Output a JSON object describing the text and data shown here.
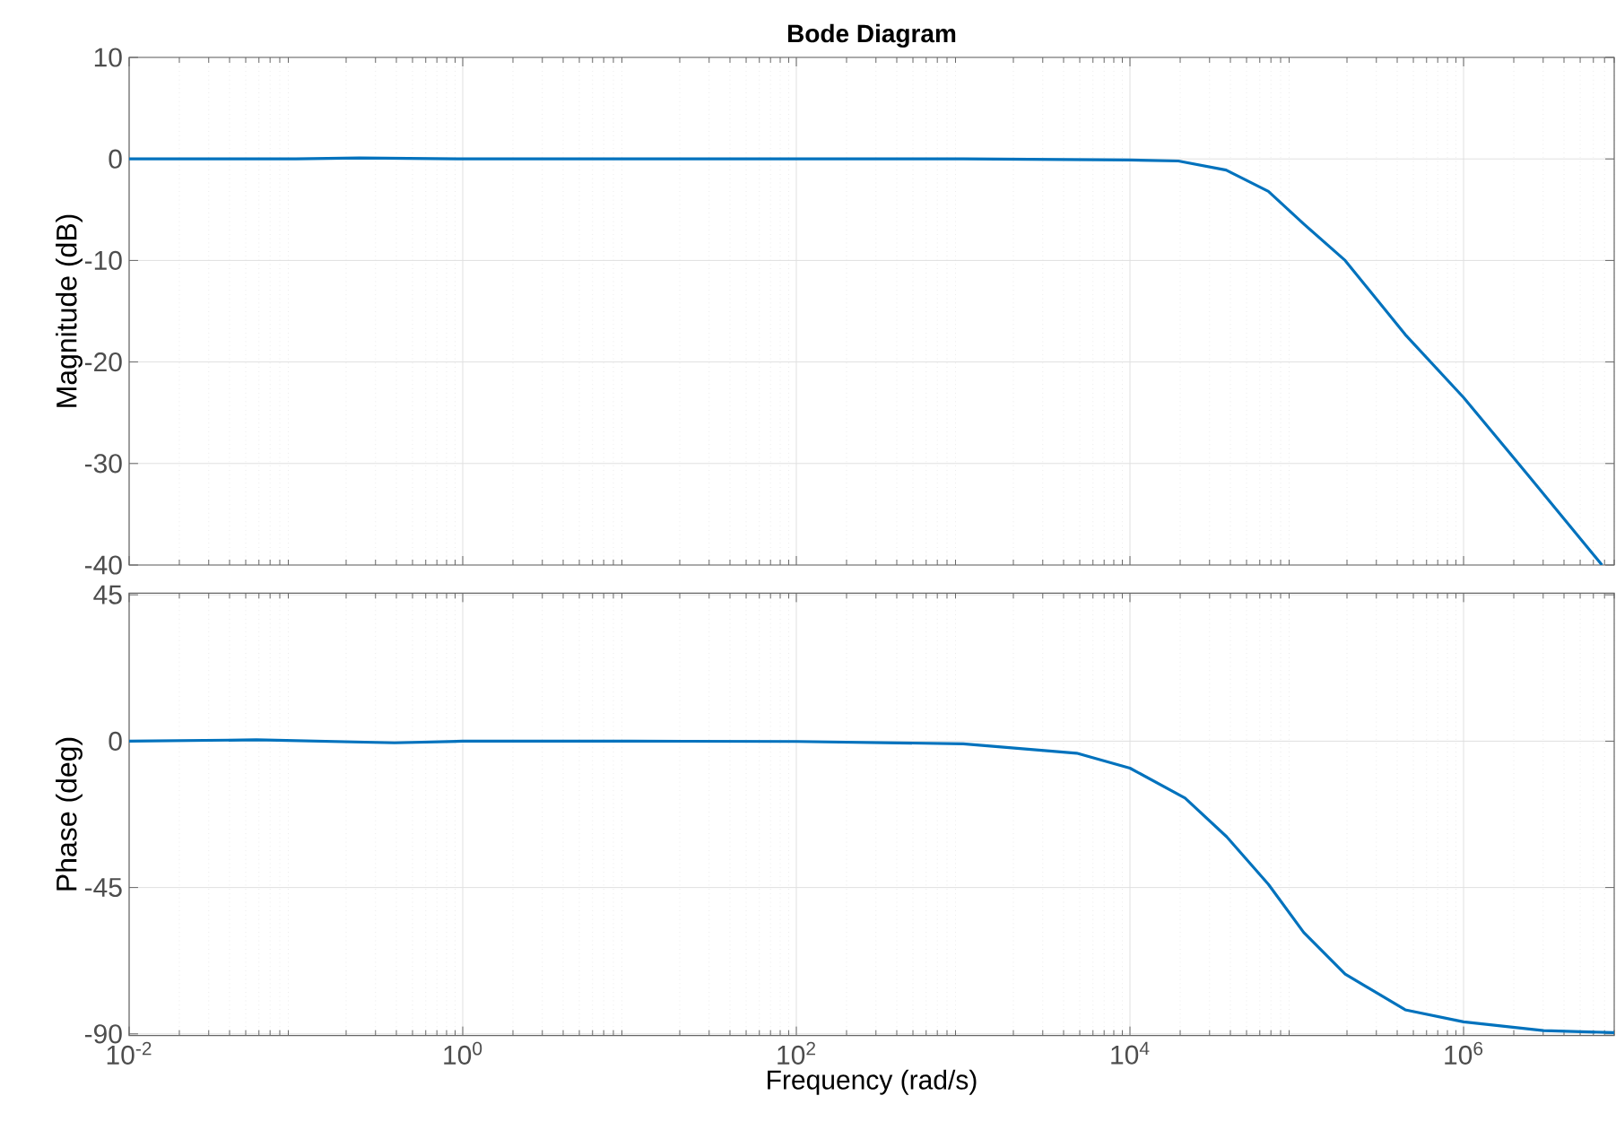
{
  "chart_data": [
    {
      "type": "line",
      "title": "Bode Diagram",
      "ylabel": "Magnitude (dB)",
      "log": "x",
      "grid": true,
      "tick_labels": "y",
      "xlim": [
        0.01,
        8000000
      ],
      "ylim": [
        -40,
        10
      ],
      "xticks": [
        {
          "value": 0.01,
          "label": null
        },
        {
          "value": 1,
          "label": null
        },
        {
          "value": 100,
          "label": null
        },
        {
          "value": 10000,
          "label": null
        },
        {
          "value": 1000000,
          "label": null
        }
      ],
      "yticks": [
        10,
        0,
        -10,
        -20,
        -30,
        -40
      ],
      "series": [
        {
          "color": "#0072bd",
          "x": [
            0.01,
            0.1,
            0.24,
            1,
            10,
            100,
            1000,
            10000,
            19500,
            37700,
            67600,
            110000,
            195000,
            447000,
            1000000,
            2510000,
            6760000
          ],
          "values": [
            0,
            0,
            0.1,
            0,
            0,
            0,
            0,
            -0.1,
            -0.2,
            -1.1,
            -3.2,
            -6.4,
            -10,
            -17.3,
            -23.5,
            -31.4,
            -40
          ]
        }
      ]
    },
    {
      "type": "line",
      "xlabel": "Frequency  (rad/s)",
      "ylabel": "Phase (deg)",
      "log": "x",
      "grid": true,
      "xlim": [
        0.01,
        8000000
      ],
      "ylim": [
        -90.5,
        45.5
      ],
      "xticks": [
        {
          "value": 0.01,
          "label": "10$^{-2}$"
        },
        {
          "value": 1,
          "label": "10$^{0}$"
        },
        {
          "value": 100,
          "label": "10$^{2}$"
        },
        {
          "value": 10000,
          "label": "10$^{4}$"
        },
        {
          "value": 1000000,
          "label": "10$^{6}$"
        }
      ],
      "yticks": [
        45,
        0,
        -45,
        -90
      ],
      "series": [
        {
          "color": "#0072bd",
          "x": [
            0.01,
            0.058,
            0.39,
            1,
            10,
            100,
            1000,
            4790,
            10000,
            21400,
            38000,
            67600,
            110000,
            195000,
            447000,
            1000000,
            3020000,
            8000000
          ],
          "values": [
            0,
            0.4,
            -0.5,
            0,
            0,
            -0.1,
            -0.8,
            -3.7,
            -8.3,
            -17.5,
            -29.4,
            -44,
            -58.8,
            -71.6,
            -82.6,
            -86.3,
            -89,
            -89.6
          ]
        }
      ]
    }
  ]
}
